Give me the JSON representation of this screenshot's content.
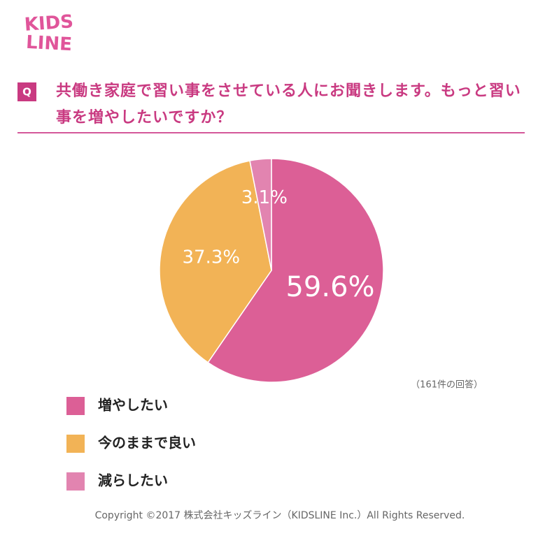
{
  "logo": [
    "KIDS",
    "LINE"
  ],
  "question_badge": "Q",
  "chart_data": {
    "type": "pie",
    "title": "共働き家庭で習い事をさせている人にお聞きします。もっと習い事を増やしたいですか？",
    "categories": [
      "増やしたい",
      "今のままで良い",
      "減らしたい"
    ],
    "values": [
      59.6,
      37.3,
      3.1
    ],
    "value_labels": [
      "59.6%",
      "37.3%",
      "3.1%"
    ],
    "colors": [
      "#dc5f96",
      "#f2b356",
      "#e284b0"
    ],
    "annotation": "（161件の回答）"
  },
  "footer": "Copyright ©2017 株式会社キッズライン（KIDSLINE Inc.）All Rights Reserved."
}
